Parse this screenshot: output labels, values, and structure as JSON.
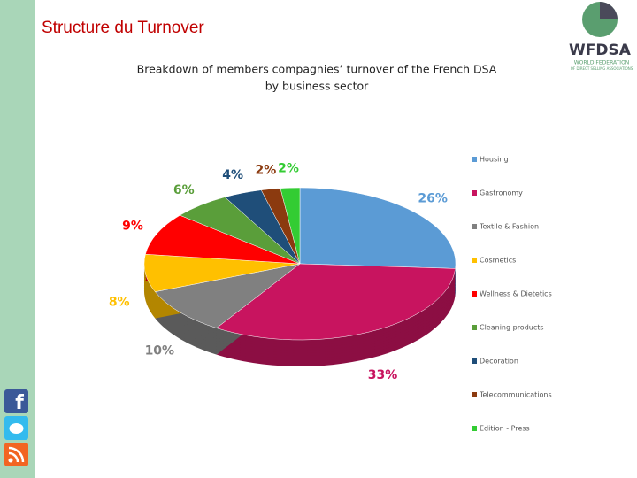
{
  "header": {
    "title": "Structure du Turnover",
    "logo": "WFDSA",
    "logo_sub": [
      "WORLD FEDERATION",
      "OF DIRECT SELLING ASSOCIATIONS"
    ],
    "facebook_icon": "f"
  },
  "chart_data": {
    "type": "pie",
    "title": [
      "Breakdown of members compagnies’ turnover of the French DSA",
      "by business sector"
    ],
    "categories": [
      "Housing",
      "Gastronomy",
      "Textile & Fashion",
      "Cosmetics",
      "Wellness & Dietetics",
      "Cleaning products",
      "Decoration",
      "Telecommunications",
      "Edition - Press"
    ],
    "values": [
      26,
      33,
      10,
      8,
      9,
      6,
      4,
      2,
      2
    ],
    "value_labels": [
      "26%",
      "33%",
      "10%",
      "8%",
      "9%",
      "6%",
      "4%",
      "2%",
      "2%"
    ],
    "colors": [
      "#5b9bd5",
      "#c8145f",
      "#808080",
      "#ffc000",
      "#ff0000",
      "#5a9e3a",
      "#1f4e79",
      "#8b3a0f",
      "#33cc33"
    ],
    "legend": "right"
  }
}
